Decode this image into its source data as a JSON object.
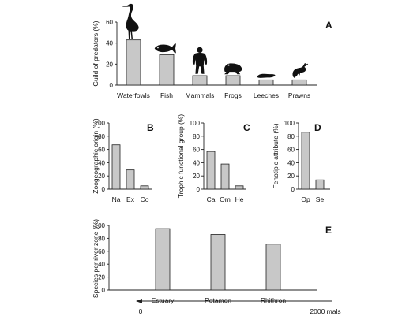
{
  "colors": {
    "bar_fill": "#c8c8c8",
    "bar_stroke": "#222222",
    "axis": "#222222",
    "text": "#111111",
    "silhouette": "#111111"
  },
  "chart_data": [
    {
      "id": "A",
      "panel_label": "A",
      "type": "bar",
      "ylabel": "Guild of predators (%)",
      "ylim": [
        0,
        60
      ],
      "yticks": [
        0,
        20,
        40,
        60
      ],
      "categories": [
        "Waterfowls",
        "Fish",
        "Mammals",
        "Frogs",
        "Leeches",
        "Prawns"
      ],
      "values": [
        43,
        29,
        9,
        9,
        5,
        5
      ],
      "icons": [
        "heron-icon",
        "fish-icon",
        "human-icon",
        "frog-icon",
        "leech-icon",
        "prawn-icon"
      ]
    },
    {
      "id": "B",
      "panel_label": "B",
      "type": "bar",
      "ylabel": "Zoogeographic origin (%)",
      "ylim": [
        0,
        100
      ],
      "yticks": [
        0,
        20,
        40,
        60,
        80,
        100
      ],
      "categories": [
        "Na",
        "Ex",
        "Co"
      ],
      "values": [
        67,
        29,
        5
      ]
    },
    {
      "id": "C",
      "panel_label": "C",
      "type": "bar",
      "ylabel": "Trophic functional group (%)",
      "ylim": [
        0,
        100
      ],
      "yticks": [
        0,
        20,
        40,
        60,
        80,
        100
      ],
      "categories": [
        "Ca",
        "Om",
        "He"
      ],
      "values": [
        57,
        38,
        5
      ]
    },
    {
      "id": "D",
      "panel_label": "D",
      "type": "bar",
      "ylabel": "Fenotipic attribute (%)",
      "ylim": [
        0,
        100
      ],
      "yticks": [
        0,
        20,
        40,
        60,
        80,
        100
      ],
      "categories": [
        "Op",
        "Se"
      ],
      "values": [
        86,
        14
      ]
    },
    {
      "id": "E",
      "panel_label": "E",
      "type": "bar",
      "ylabel": "Species per river zone (%)",
      "ylim": [
        0,
        100
      ],
      "yticks": [
        0,
        20,
        40,
        60,
        80,
        100
      ],
      "categories": [
        "Estuary",
        "Potamon",
        "Rhithron"
      ],
      "values": [
        95,
        86,
        71
      ],
      "arrow_start_label": "0",
      "arrow_end_label": "2000 mals"
    }
  ]
}
